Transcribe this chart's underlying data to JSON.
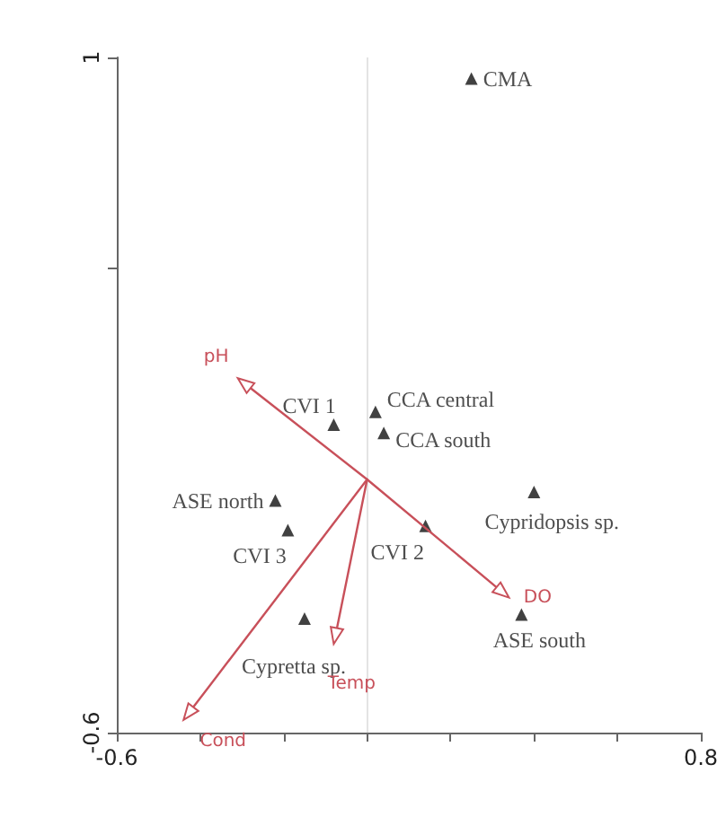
{
  "chart_data": {
    "type": "scatter",
    "marker": "triangle",
    "grid": false,
    "xlim": [
      -0.6,
      0.8
    ],
    "xticks": [
      -0.6,
      {
        "value": -0.4,
        "label": null
      },
      {
        "value": -0.2,
        "label": null
      },
      {
        "value": 0,
        "label": null
      },
      {
        "value": 0.2,
        "label": null
      },
      {
        "value": 0.4,
        "label": null
      },
      {
        "value": 0.6,
        "label": null
      },
      0.8
    ],
    "ylim": [
      -0.6,
      1.0
    ],
    "yticks": [
      -0.6,
      {
        "value": 0.5,
        "label": null
      },
      1.0
    ],
    "ref_lines": [
      {
        "axis": "x",
        "value": 0,
        "color": "#e4e4e4"
      }
    ],
    "series": [
      {
        "color": "#111111",
        "x": [
          0.25,
          -0.08,
          0.02,
          0.04,
          -0.22,
          -0.19,
          0.4,
          0.14,
          0.37,
          -0.15
        ],
        "values": [
          0.95,
          0.13,
          0.16,
          0.11,
          -0.05,
          -0.12,
          -0.03,
          -0.11,
          -0.32,
          -0.33
        ],
        "value_labels": [
          "CMA",
          "CVI 1",
          "CCA central",
          "CCA south",
          "ASE north",
          "CVI 3",
          "Cypridopsis sp.",
          "CVI 2",
          "ASE south",
          "Cypretta sp."
        ]
      }
    ],
    "annotations": [
      "pH",
      "DO",
      "Temp",
      "Cond"
    ]
  }
}
